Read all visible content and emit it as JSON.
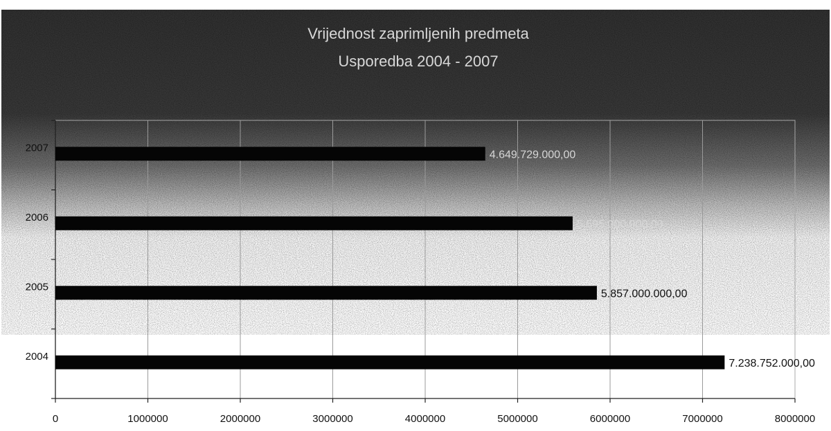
{
  "chart_data": {
    "type": "bar",
    "orientation": "horizontal",
    "title": "Vrijednost zaprimljenih predmeta",
    "subtitle": "Usporedba 2004 - 2007",
    "categories": [
      "2004",
      "2005",
      "2006",
      "2007"
    ],
    "values": [
      7238752,
      5857000,
      5595000,
      4649729
    ],
    "data_labels": [
      "7.238.752.000,00",
      "5.857.000.000,00",
      "5.595.000.000,00",
      "4.649.729.000,00"
    ],
    "xlim": [
      0,
      8000000
    ],
    "x_ticks": [
      0,
      1000000,
      2000000,
      3000000,
      4000000,
      5000000,
      6000000,
      7000000,
      8000000
    ],
    "x_tick_labels": [
      "0",
      "1000000",
      "2000000",
      "3000000",
      "4000000",
      "5000000",
      "6000000",
      "7000000",
      "8000000"
    ],
    "grid": true,
    "legend": "none",
    "bar_color": "#050505",
    "grid_color": "#9a9a9a",
    "background": "#2b2b2b",
    "page_background": "#ffffff"
  }
}
